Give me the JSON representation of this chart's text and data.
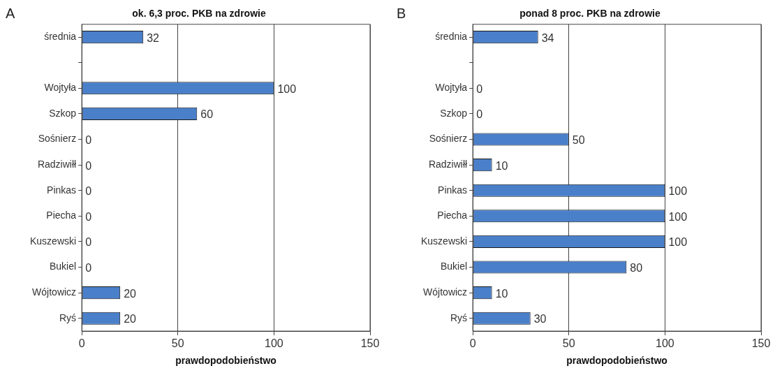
{
  "chart_data": [
    {
      "type": "bar",
      "orientation": "horizontal",
      "title": "ok. 6,3 proc. PKB na zdrowie",
      "xlabel": "prawdopodobieństwo",
      "annotations": [
        "A"
      ],
      "categories": [
        "średnia",
        null,
        "Wojtyła",
        "Szkop",
        "Sośnierz",
        "Radziwiłł",
        "Pinkas",
        "Piecha",
        "Kuszewski",
        "Bukiel",
        "Wójtowicz",
        "Ryś"
      ],
      "values": [
        32,
        null,
        100,
        60,
        0,
        0,
        0,
        0,
        0,
        0,
        20,
        20
      ],
      "color": "#4a7fc9",
      "xlim": [
        0,
        150
      ],
      "xticks": [
        0,
        50,
        100,
        150
      ],
      "grid": "x",
      "data_labels": true,
      "legend": false
    },
    {
      "type": "bar",
      "orientation": "horizontal",
      "title": "ponad 8 proc. PKB na zdrowie",
      "xlabel": "prawdopodobieństwo",
      "annotations": [
        "B"
      ],
      "categories": [
        "średnia",
        null,
        "Wojtyła",
        "Szkop",
        "Sośnierz",
        "Radziwiłł",
        "Pinkas",
        "Piecha",
        "Kuszewski",
        "Bukiel",
        "Wójtowicz",
        "Ryś"
      ],
      "values": [
        34,
        null,
        0,
        0,
        50,
        10,
        100,
        100,
        100,
        80,
        10,
        30
      ],
      "color": "#4a7fc9",
      "xlim": [
        0,
        150
      ],
      "xticks": [
        0,
        50,
        100,
        150
      ],
      "grid": "x",
      "data_labels": true,
      "legend": false
    }
  ]
}
